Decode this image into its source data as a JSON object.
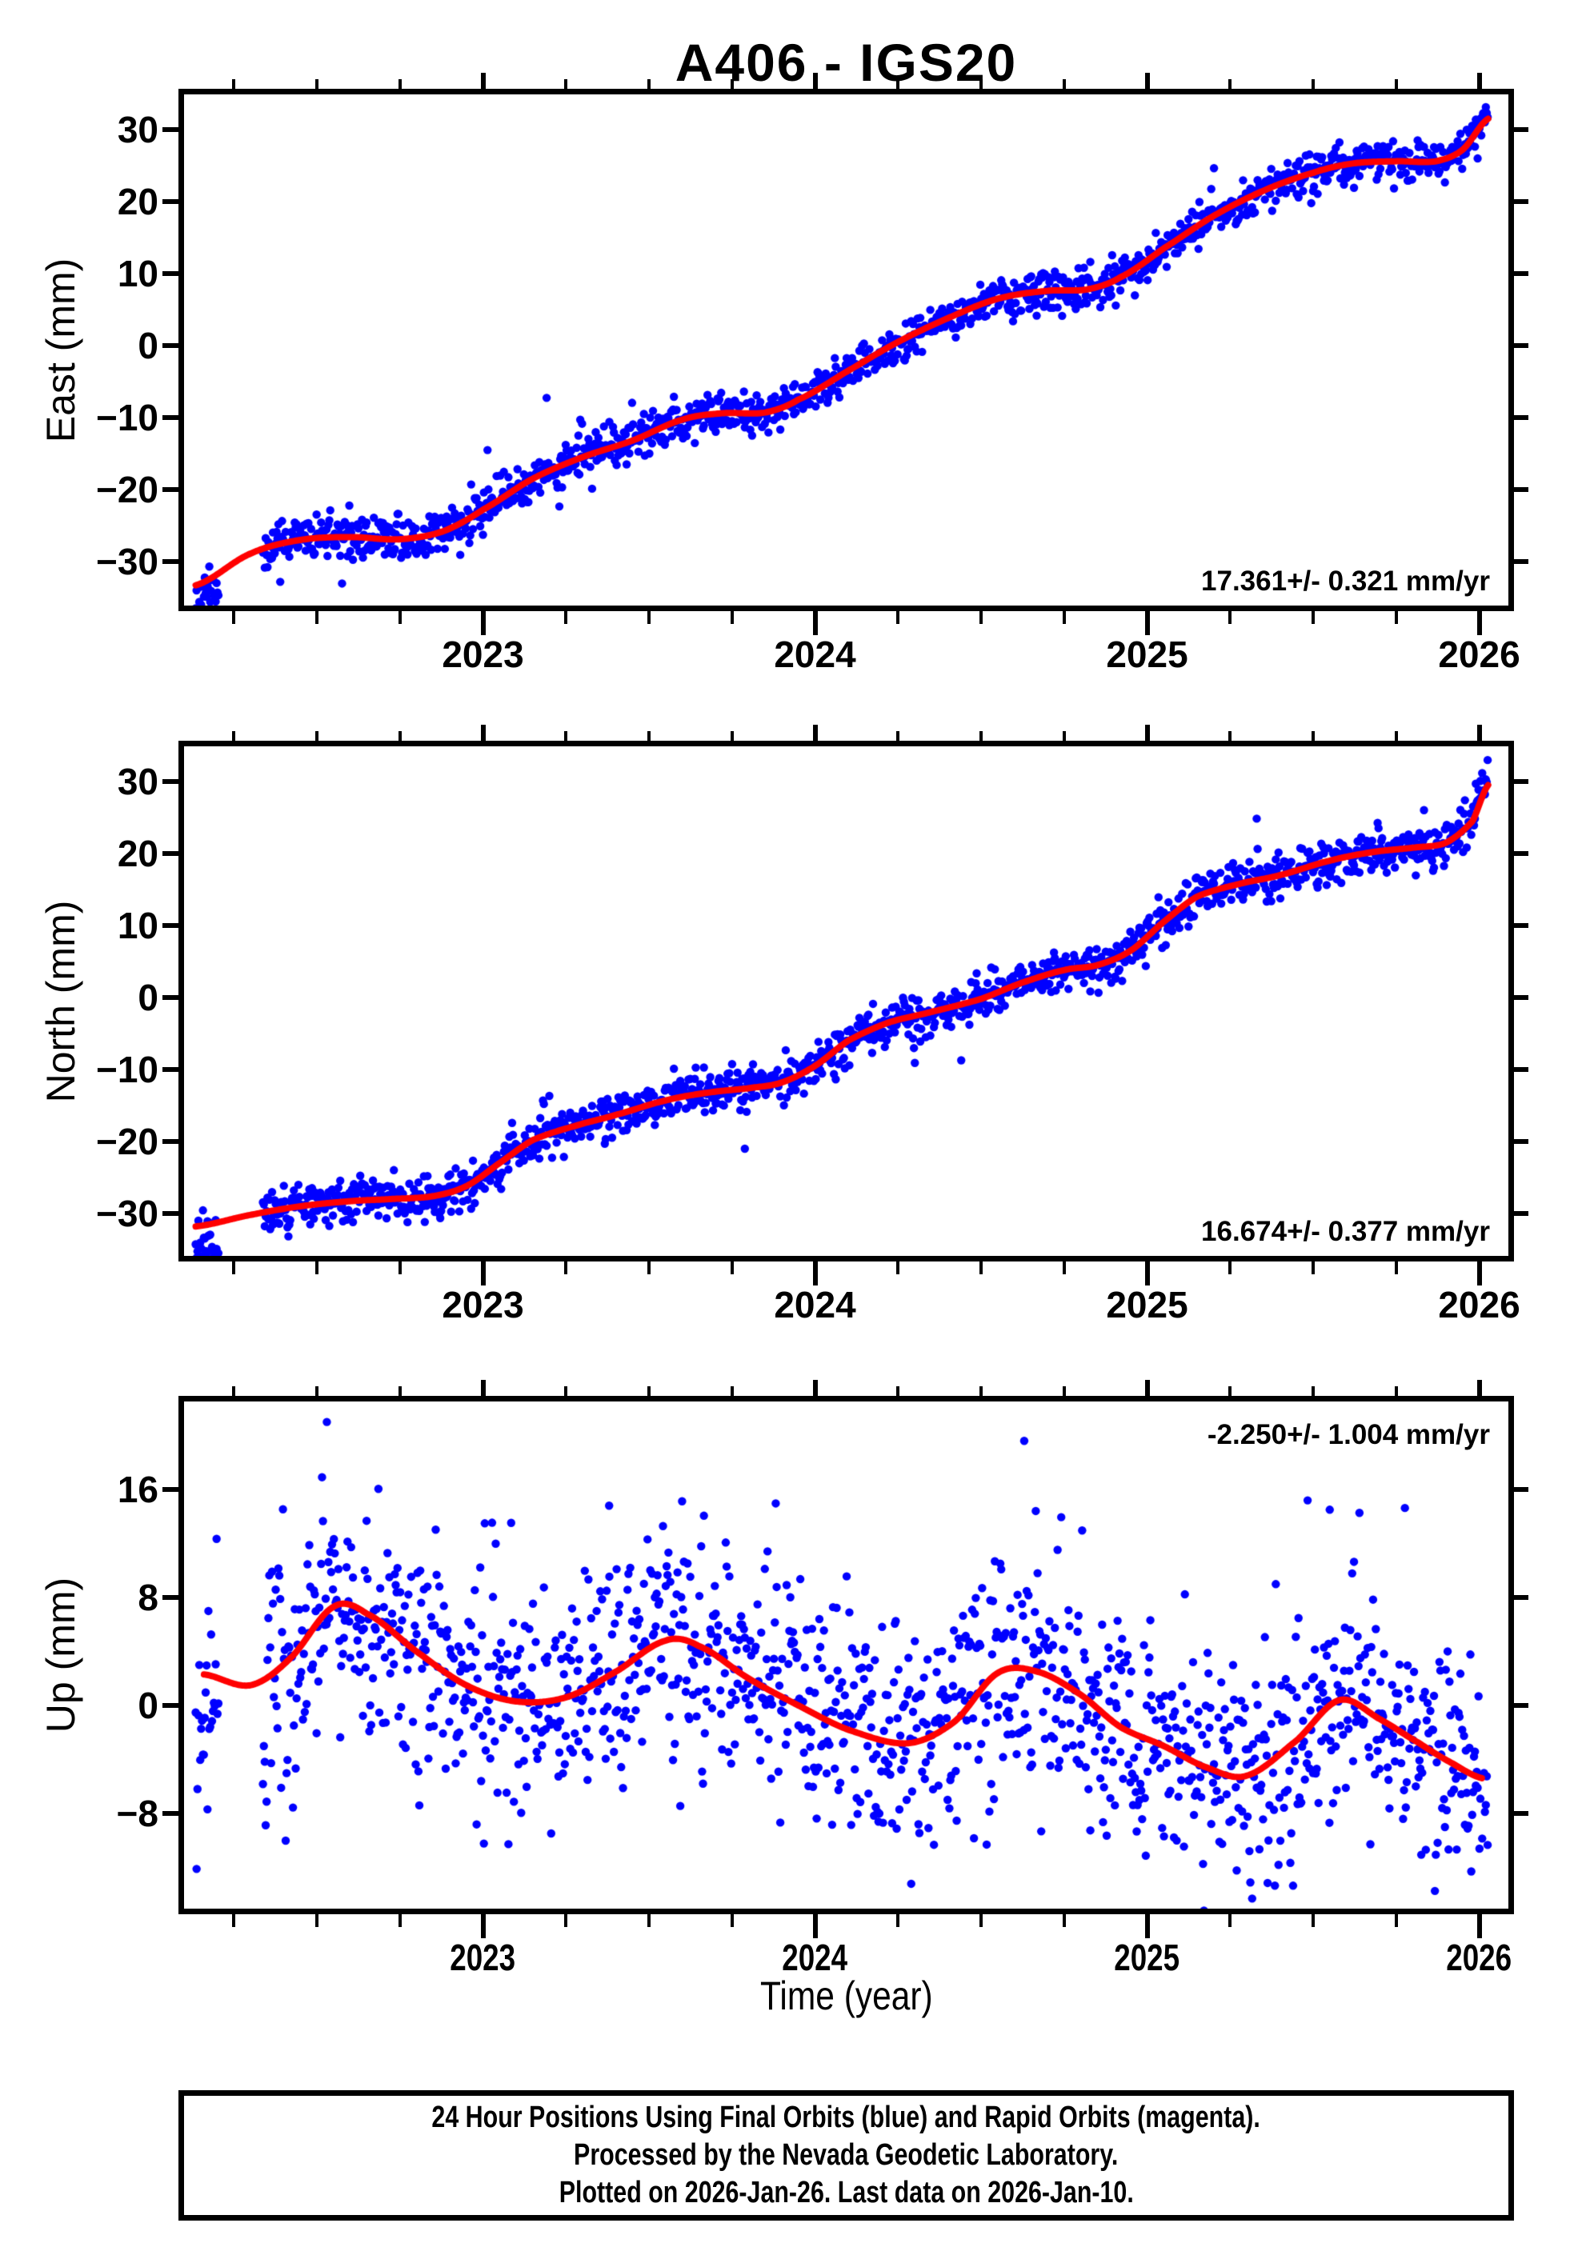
{
  "title": "A406 - IGS20",
  "colors": {
    "points": "#0000ff",
    "fit_line": "#ff0000",
    "frame": "#000000",
    "background": "#ffffff",
    "text": "#000000"
  },
  "x_axis": {
    "label": "Time (year)",
    "range": [
      2022.1,
      2026.09
    ],
    "major_ticks": [
      2023,
      2024,
      2025,
      2026
    ],
    "major_tick_labels": [
      "2023",
      "2024",
      "2025",
      "2026"
    ],
    "minor_tick_interval": 0.25
  },
  "sampling": {
    "start": 2022.135,
    "end": 2026.027,
    "step_days": 1,
    "gaps": [
      [
        2022.205,
        2022.335
      ]
    ]
  },
  "footer": {
    "lines": [
      "24 Hour Positions Using Final Orbits (blue) and Rapid Orbits (magenta).",
      "Processed by the Nevada Geodetic Laboratory.",
      "Plotted on 2026-Jan-26. Last data on 2026-Jan-10."
    ]
  },
  "chart_data": [
    {
      "type": "scatter",
      "component": "East",
      "ylabel": "East (mm)",
      "xlabel": "",
      "y_range": [
        -36.1,
        34.9
      ],
      "y_ticks": [
        30,
        20,
        10,
        0,
        -10,
        -20,
        -30
      ],
      "y_tick_labels": [
        "30",
        "20",
        "10",
        "0",
        "−10",
        "−20",
        "−30"
      ],
      "annotation": "17.361+/- 0.321 mm/yr",
      "annotation_corner": "bottom-right",
      "rate_mm_per_yr": 17.361,
      "rate_sigma_mm_per_yr": 0.321,
      "scatter_sd_mm": 1.4,
      "outlier_rate": 0.012,
      "outlier_extra_sd_mm": 2.6,
      "early_cluster_bias_mm": -1.6,
      "seed": 11,
      "fit_curve": [
        [
          2022.135,
          -33.3
        ],
        [
          2022.3,
          -28.9
        ],
        [
          2022.45,
          -27.0
        ],
        [
          2022.6,
          -26.6
        ],
        [
          2022.75,
          -26.9
        ],
        [
          2022.88,
          -25.8
        ],
        [
          2023.0,
          -22.8
        ],
        [
          2023.15,
          -18.5
        ],
        [
          2023.3,
          -15.5
        ],
        [
          2023.45,
          -13.2
        ],
        [
          2023.6,
          -10.3
        ],
        [
          2023.72,
          -9.4
        ],
        [
          2023.85,
          -9.3
        ],
        [
          2023.95,
          -7.5
        ],
        [
          2024.1,
          -3.5
        ],
        [
          2024.25,
          0.5
        ],
        [
          2024.4,
          3.8
        ],
        [
          2024.55,
          6.5
        ],
        [
          2024.7,
          7.6
        ],
        [
          2024.82,
          7.8
        ],
        [
          2024.92,
          9.5
        ],
        [
          2025.05,
          13.5
        ],
        [
          2025.2,
          18.0
        ],
        [
          2025.35,
          21.5
        ],
        [
          2025.5,
          24.0
        ],
        [
          2025.62,
          25.3
        ],
        [
          2025.75,
          25.6
        ],
        [
          2025.87,
          25.6
        ],
        [
          2025.95,
          27.2
        ],
        [
          2026.027,
          31.5
        ]
      ],
      "outlier_points": []
    },
    {
      "type": "scatter",
      "component": "North",
      "ylabel": "North (mm)",
      "xlabel": "",
      "y_range": [
        -35.9,
        34.9
      ],
      "y_ticks": [
        30,
        20,
        10,
        0,
        -10,
        -20,
        -30
      ],
      "y_tick_labels": [
        "30",
        "20",
        "10",
        "0",
        "−10",
        "−20",
        "−30"
      ],
      "annotation": "16.674+/- 0.377 mm/yr",
      "annotation_corner": "bottom-right",
      "rate_mm_per_yr": 16.674,
      "rate_sigma_mm_per_yr": 0.377,
      "scatter_sd_mm": 1.5,
      "outlier_rate": 0.012,
      "outlier_extra_sd_mm": 2.6,
      "early_cluster_bias_mm": -2.6,
      "seed": 22,
      "fit_curve": [
        [
          2022.135,
          -31.8
        ],
        [
          2022.3,
          -30.2
        ],
        [
          2022.45,
          -29.0
        ],
        [
          2022.6,
          -28.3
        ],
        [
          2022.72,
          -28.0
        ],
        [
          2022.85,
          -27.6
        ],
        [
          2022.95,
          -26.2
        ],
        [
          2023.05,
          -23.0
        ],
        [
          2023.15,
          -19.8
        ],
        [
          2023.28,
          -17.8
        ],
        [
          2023.4,
          -16.3
        ],
        [
          2023.55,
          -14.3
        ],
        [
          2023.68,
          -13.2
        ],
        [
          2023.8,
          -12.6
        ],
        [
          2023.9,
          -11.8
        ],
        [
          2024.0,
          -9.5
        ],
        [
          2024.1,
          -6.0
        ],
        [
          2024.22,
          -3.5
        ],
        [
          2024.35,
          -2.0
        ],
        [
          2024.5,
          -0.2
        ],
        [
          2024.62,
          2.0
        ],
        [
          2024.75,
          3.8
        ],
        [
          2024.85,
          4.5
        ],
        [
          2024.95,
          6.5
        ],
        [
          2025.05,
          10.5
        ],
        [
          2025.15,
          14.0
        ],
        [
          2025.28,
          15.8
        ],
        [
          2025.4,
          17.0
        ],
        [
          2025.55,
          19.0
        ],
        [
          2025.68,
          20.2
        ],
        [
          2025.8,
          20.8
        ],
        [
          2025.9,
          21.5
        ],
        [
          2025.98,
          24.5
        ],
        [
          2026.027,
          29.5
        ]
      ],
      "outlier_points": []
    },
    {
      "type": "scatter",
      "component": "Up",
      "ylabel": "Up (mm)",
      "xlabel": "Time (year)",
      "y_range": [
        -15.1,
        22.5
      ],
      "y_ticks": [
        16,
        8,
        0,
        -8
      ],
      "y_tick_labels": [
        "16",
        "8",
        "0",
        "−8"
      ],
      "annotation": "-2.250+/- 1.004 mm/yr",
      "annotation_corner": "top-right",
      "rate_mm_per_yr": -2.25,
      "rate_sigma_mm_per_yr": 1.004,
      "scatter_sd_mm": 4.4,
      "outlier_rate": 0.02,
      "outlier_extra_sd_mm": 2.0,
      "early_cluster_bias_mm": -2.5,
      "seed": 33,
      "fit_curve": [
        [
          2022.16,
          2.3
        ],
        [
          2022.3,
          1.5
        ],
        [
          2022.42,
          3.5
        ],
        [
          2022.55,
          7.3
        ],
        [
          2022.65,
          6.8
        ],
        [
          2022.8,
          4.0
        ],
        [
          2022.95,
          1.5
        ],
        [
          2023.1,
          0.3
        ],
        [
          2023.25,
          0.6
        ],
        [
          2023.4,
          2.5
        ],
        [
          2023.55,
          4.8
        ],
        [
          2023.65,
          4.4
        ],
        [
          2023.8,
          2.0
        ],
        [
          2023.95,
          0.0
        ],
        [
          2024.1,
          -1.8
        ],
        [
          2024.28,
          -2.8
        ],
        [
          2024.42,
          -1.2
        ],
        [
          2024.55,
          2.4
        ],
        [
          2024.67,
          2.5
        ],
        [
          2024.8,
          0.8
        ],
        [
          2024.92,
          -1.6
        ],
        [
          2025.05,
          -3.0
        ],
        [
          2025.18,
          -4.6
        ],
        [
          2025.3,
          -5.2
        ],
        [
          2025.45,
          -2.6
        ],
        [
          2025.58,
          0.4
        ],
        [
          2025.7,
          -1.0
        ],
        [
          2025.82,
          -2.8
        ],
        [
          2025.92,
          -4.3
        ],
        [
          2026.01,
          -5.4
        ]
      ],
      "outlier_points": [
        [
          2022.53,
          21.0
        ],
        [
          2024.63,
          19.6
        ],
        [
          2023.38,
          14.8
        ],
        [
          2025.55,
          14.5
        ]
      ]
    }
  ]
}
